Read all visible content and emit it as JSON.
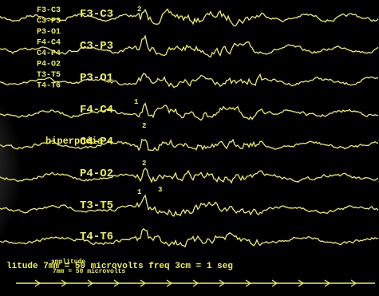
{
  "small_labels": [
    "F3-C3",
    "C3-P3",
    "P3-O1",
    "F4-C4",
    "C4-P4",
    "P4-O2",
    "T3-T5",
    "T4-T6"
  ],
  "channels": [
    "F3-C3",
    "C3-P3",
    "P3-O1",
    "F4-C4",
    "C4-P4",
    "P4-O2",
    "T3-T5",
    "T4-T6"
  ],
  "annotation": "hiperpnéia",
  "markers": [
    "2",
    "1",
    "2",
    "2",
    "1",
    "3"
  ],
  "footer": "litude 7mm = 50 microvolts freq 3cm = 1 seg",
  "footer_overlay": [
    "amplitude",
    "7mm = 50 microvolts"
  ]
}
